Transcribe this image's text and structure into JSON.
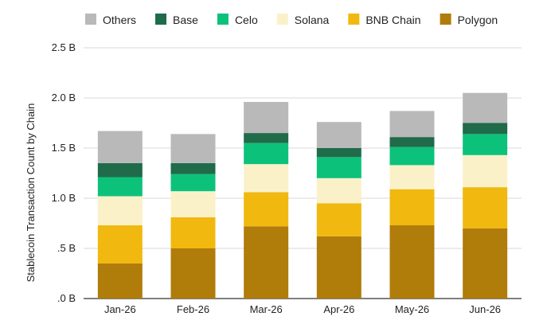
{
  "chart_data": {
    "type": "bar",
    "stacked": true,
    "title": "",
    "xlabel": "",
    "ylabel": "Stablecoin Transaction Count by Chain",
    "ylim": [
      0,
      2.5
    ],
    "yticks": [
      0,
      0.5,
      1.0,
      1.5,
      2.0,
      2.5
    ],
    "ytick_labels": [
      ".0 B",
      ".5 B",
      "1.0 B",
      "1.5 B",
      "2.0 B",
      "2.5 B"
    ],
    "grid": true,
    "legend_position": "top",
    "categories": [
      "Jan-26",
      "Feb-26",
      "Mar-26",
      "Apr-26",
      "May-26",
      "Jun-26"
    ],
    "series": [
      {
        "name": "Polygon",
        "color": "#b07c0a",
        "values": [
          0.35,
          0.5,
          0.72,
          0.62,
          0.73,
          0.7
        ]
      },
      {
        "name": "BNB Chain",
        "color": "#f1b80f",
        "values": [
          0.38,
          0.31,
          0.34,
          0.33,
          0.36,
          0.41
        ]
      },
      {
        "name": "Solana",
        "color": "#fbf1c8",
        "values": [
          0.29,
          0.26,
          0.28,
          0.25,
          0.24,
          0.32
        ]
      },
      {
        "name": "Celo",
        "color": "#0cc27a",
        "values": [
          0.19,
          0.17,
          0.21,
          0.21,
          0.18,
          0.21
        ]
      },
      {
        "name": "Base",
        "color": "#1f6b4a",
        "values": [
          0.14,
          0.11,
          0.1,
          0.09,
          0.1,
          0.11
        ]
      },
      {
        "name": "Others",
        "color": "#b9b9b9",
        "values": [
          0.32,
          0.29,
          0.31,
          0.26,
          0.26,
          0.3
        ]
      }
    ],
    "legend_order": [
      "Others",
      "Base",
      "Celo",
      "Solana",
      "BNB Chain",
      "Polygon"
    ]
  }
}
